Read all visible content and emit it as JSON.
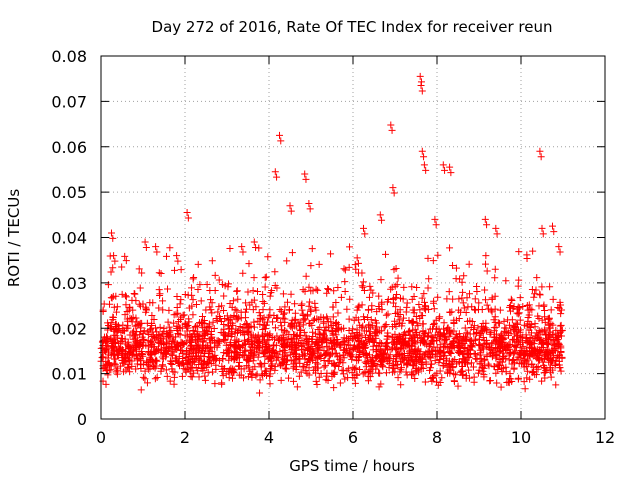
{
  "chart_data": {
    "type": "scatter",
    "title": "Day 272 of 2016, Rate Of TEC Index for receiver reun",
    "xlabel": "GPS time / hours",
    "ylabel": "ROTI / TECUs",
    "xlim": [
      0,
      12
    ],
    "ylim": [
      0,
      0.08
    ],
    "x_ticks": [
      0,
      2,
      4,
      6,
      8,
      10,
      12
    ],
    "y_ticks": [
      0,
      0.01,
      0.02,
      0.03,
      0.04,
      0.05,
      0.06,
      0.07,
      0.08
    ],
    "x_tick_labels": [
      "0",
      "2",
      "4",
      "6",
      "8",
      "10",
      "12"
    ],
    "y_tick_labels": [
      "0",
      "0.01",
      "0.02",
      "0.03",
      "0.04",
      "0.05",
      "0.06",
      "0.07",
      "0.08"
    ],
    "grid": true,
    "marker": "+",
    "color": "#ff0000",
    "series": [
      {
        "name": "ROTI",
        "x_range": [
          0,
          11.0
        ],
        "bulk_range": [
          0.005,
          0.025
        ],
        "notable_points": [
          {
            "x": 0.25,
            "y": 0.041
          },
          {
            "x": 0.3,
            "y": 0.036
          },
          {
            "x": 1.05,
            "y": 0.039
          },
          {
            "x": 1.3,
            "y": 0.038
          },
          {
            "x": 1.8,
            "y": 0.036
          },
          {
            "x": 2.05,
            "y": 0.0455
          },
          {
            "x": 3.35,
            "y": 0.038
          },
          {
            "x": 3.65,
            "y": 0.039
          },
          {
            "x": 4.15,
            "y": 0.0545
          },
          {
            "x": 4.25,
            "y": 0.0625
          },
          {
            "x": 4.5,
            "y": 0.047
          },
          {
            "x": 4.85,
            "y": 0.054
          },
          {
            "x": 4.95,
            "y": 0.0475
          },
          {
            "x": 6.1,
            "y": 0.0355
          },
          {
            "x": 6.25,
            "y": 0.042
          },
          {
            "x": 6.65,
            "y": 0.045
          },
          {
            "x": 6.9,
            "y": 0.0648
          },
          {
            "x": 6.95,
            "y": 0.051
          },
          {
            "x": 7.6,
            "y": 0.0755
          },
          {
            "x": 7.62,
            "y": 0.0735
          },
          {
            "x": 7.65,
            "y": 0.059
          },
          {
            "x": 7.7,
            "y": 0.056
          },
          {
            "x": 7.95,
            "y": 0.044
          },
          {
            "x": 8.15,
            "y": 0.056
          },
          {
            "x": 8.3,
            "y": 0.0555
          },
          {
            "x": 9.15,
            "y": 0.044
          },
          {
            "x": 9.4,
            "y": 0.042
          },
          {
            "x": 10.45,
            "y": 0.059
          },
          {
            "x": 10.5,
            "y": 0.042
          },
          {
            "x": 10.75,
            "y": 0.0425
          },
          {
            "x": 10.9,
            "y": 0.038
          }
        ]
      }
    ]
  }
}
